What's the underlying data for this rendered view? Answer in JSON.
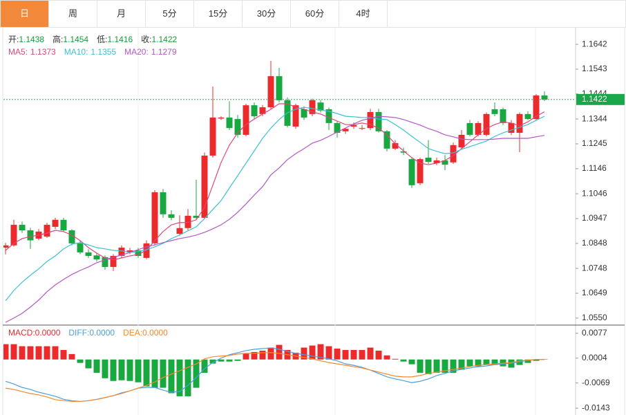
{
  "tabs": [
    "日",
    "周",
    "月",
    "5分",
    "15分",
    "30分",
    "60分",
    "4时"
  ],
  "active_tab": 0,
  "chart_data": [
    {
      "type": "candlestick",
      "info": [
        {
          "label": "开:",
          "value": "1.1438"
        },
        {
          "label": "高:",
          "value": "1.1454"
        },
        {
          "label": "低:",
          "value": "1.1416"
        },
        {
          "label": "收:",
          "value": "1.1422"
        }
      ],
      "up_color": "#eb2b2b",
      "down_color": "#18a83f",
      "open": [
        1.0831,
        1.084,
        1.0922,
        1.09,
        1.0867,
        1.0875,
        1.0914,
        1.0942,
        1.09,
        1.0848,
        1.0812,
        1.08,
        1.0793,
        1.0754,
        1.0798,
        1.0812,
        1.082,
        1.079,
        1.0848,
        1.1052,
        1.0964,
        1.0886,
        1.0909,
        1.0958,
        1.095,
        1.1198,
        1.1346,
        1.135,
        1.1344,
        1.1281,
        1.1399,
        1.1364,
        1.1391,
        1.1515,
        1.1419,
        1.1314,
        1.1383,
        1.1364,
        1.141,
        1.1383,
        1.1328,
        1.1295,
        1.1314,
        1.1305,
        1.1308,
        1.1372,
        1.1295,
        1.1226,
        1.1215,
        1.1184,
        1.1088,
        1.119,
        1.1168,
        1.1179,
        1.1171,
        1.1231,
        1.1328,
        1.1281,
        1.1281,
        1.1383,
        1.1383,
        1.1289,
        1.1289,
        1.1364,
        1.1344,
        1.1438
      ],
      "high": [
        1.085,
        1.0942,
        1.0935,
        1.091,
        1.0905,
        1.093,
        1.095,
        1.095,
        1.0905,
        1.086,
        1.0825,
        1.081,
        1.08,
        1.0805,
        1.084,
        1.083,
        1.083,
        1.086,
        1.106,
        1.1065,
        1.098,
        1.096,
        1.0985,
        1.1102,
        1.121,
        1.1474,
        1.1355,
        1.1415,
        1.136,
        1.1405,
        1.141,
        1.14,
        1.1576,
        1.1548,
        1.143,
        1.1405,
        1.1395,
        1.1425,
        1.142,
        1.139,
        1.1335,
        1.131,
        1.133,
        1.132,
        1.1385,
        1.1385,
        1.13,
        1.126,
        1.123,
        1.119,
        1.119,
        1.126,
        1.119,
        1.12,
        1.125,
        1.13,
        1.134,
        1.1335,
        1.137,
        1.141,
        1.139,
        1.134,
        1.137,
        1.1375,
        1.1444,
        1.1454
      ],
      "low": [
        1.0804,
        1.0835,
        1.089,
        1.0826,
        1.086,
        1.087,
        1.0905,
        1.0895,
        1.084,
        1.0805,
        1.079,
        1.0775,
        1.0743,
        1.0738,
        1.079,
        1.0805,
        1.079,
        1.0785,
        1.084,
        1.095,
        1.094,
        1.088,
        1.09,
        1.0945,
        1.0945,
        1.119,
        1.134,
        1.13,
        1.127,
        1.1275,
        1.1345,
        1.1355,
        1.1385,
        1.141,
        1.131,
        1.1305,
        1.134,
        1.1355,
        1.137,
        1.13,
        1.127,
        1.1285,
        1.1305,
        1.13,
        1.13,
        1.129,
        1.1215,
        1.122,
        1.12,
        1.1069,
        1.108,
        1.1165,
        1.116,
        1.114,
        1.1165,
        1.1225,
        1.1275,
        1.1275,
        1.1275,
        1.1355,
        1.132,
        1.128,
        1.1212,
        1.134,
        1.134,
        1.1416
      ],
      "close": [
        1.084,
        1.0922,
        1.09,
        1.086,
        1.0895,
        1.0922,
        1.0942,
        1.09,
        1.0848,
        1.0812,
        1.0798,
        1.0784,
        1.0754,
        1.0798,
        1.0831,
        1.082,
        1.0798,
        1.0848,
        1.1052,
        1.0964,
        1.095,
        1.0909,
        1.0958,
        1.095,
        1.1198,
        1.135,
        1.135,
        1.1308,
        1.1281,
        1.1399,
        1.1355,
        1.1391,
        1.1515,
        1.1419,
        1.1317,
        1.1399,
        1.135,
        1.1419,
        1.1377,
        1.1328,
        1.1289,
        1.1305,
        1.132,
        1.1308,
        1.1372,
        1.1295,
        1.1226,
        1.1248,
        1.121,
        1.108,
        1.1184,
        1.1173,
        1.1179,
        1.1162,
        1.124,
        1.1281,
        1.1281,
        1.1328,
        1.1364,
        1.1364,
        1.1328,
        1.1328,
        1.1364,
        1.1344,
        1.1438,
        1.1422
      ],
      "series": [
        {
          "label": "MA5:",
          "value_label": "1.1373",
          "color": "#e0457b",
          "values": [
            1.082,
            1.0848,
            1.0867,
            1.0875,
            1.0881,
            1.0889,
            1.09,
            1.0895,
            1.0881,
            1.0859,
            1.0831,
            1.0809,
            1.079,
            1.0782,
            1.079,
            1.0798,
            1.0804,
            1.082,
            1.0859,
            1.0895,
            1.0922,
            1.0931,
            1.0931,
            1.0942,
            1.0991,
            1.108,
            1.1171,
            1.124,
            1.1289,
            1.1322,
            1.1344,
            1.1364,
            1.1383,
            1.1405,
            1.1405,
            1.1391,
            1.1383,
            1.1372,
            1.1364,
            1.135,
            1.1336,
            1.1322,
            1.1322,
            1.1328,
            1.1322,
            1.1308,
            1.1281,
            1.1245,
            1.1217,
            1.119,
            1.1168,
            1.1162,
            1.1168,
            1.1179,
            1.1198,
            1.1226,
            1.1253,
            1.1281,
            1.1306,
            1.1322,
            1.1333,
            1.1328,
            1.1317,
            1.1333,
            1.1355,
            1.1373
          ]
        },
        {
          "label": "MA10:",
          "value_label": "1.1355",
          "color": "#3cc0d4",
          "values": [
            1.0619,
            1.066,
            1.0693,
            1.0721,
            1.0746,
            1.0776,
            1.0798,
            1.0826,
            1.0845,
            1.0851,
            1.0842,
            1.0831,
            1.0826,
            1.082,
            1.0818,
            1.0812,
            1.0815,
            1.0823,
            1.0834,
            1.0848,
            1.0867,
            1.0881,
            1.0898,
            1.0914,
            1.0947,
            1.0983,
            1.1019,
            1.1069,
            1.1118,
            1.1168,
            1.1217,
            1.1267,
            1.1308,
            1.1342,
            1.1369,
            1.1383,
            1.1391,
            1.1386,
            1.138,
            1.1375,
            1.1366,
            1.1355,
            1.1353,
            1.135,
            1.135,
            1.1344,
            1.1342,
            1.1322,
            1.13,
            1.1275,
            1.1251,
            1.1226,
            1.1215,
            1.1206,
            1.1209,
            1.1223,
            1.1234,
            1.1245,
            1.1256,
            1.1275,
            1.1289,
            1.13,
            1.1311,
            1.1322,
            1.1339,
            1.1355
          ]
        },
        {
          "label": "MA20:",
          "value_label": "1.1279",
          "color": "#b455c8",
          "values": [
            1.0533,
            1.055,
            1.0569,
            1.0594,
            1.0622,
            1.0655,
            1.0682,
            1.0704,
            1.0724,
            1.074,
            1.0754,
            1.0771,
            1.0782,
            1.0793,
            1.0801,
            1.0812,
            1.0823,
            1.0834,
            1.0842,
            1.0851,
            1.0859,
            1.0867,
            1.0873,
            1.0881,
            1.0892,
            1.0906,
            1.0922,
            1.0944,
            1.0972,
            1.1005,
            1.1041,
            1.1074,
            1.1121,
            1.1149,
            1.1182,
            1.1206,
            1.1226,
            1.1248,
            1.1259,
            1.1275,
            1.1292,
            1.1308,
            1.1325,
            1.1339,
            1.1347,
            1.1355,
            1.1353,
            1.135,
            1.1342,
            1.1331,
            1.132,
            1.1306,
            1.1295,
            1.1281,
            1.1273,
            1.1264,
            1.1262,
            1.1262,
            1.1262,
            1.1264,
            1.1267,
            1.1267,
            1.1267,
            1.1267,
            1.1273,
            1.1279
          ]
        }
      ],
      "last_price": 1.1422,
      "last_price_color": "#1aa64a",
      "ylim": [
        1.0522,
        1.1703
      ],
      "yticks": [
        1.1642,
        1.1543,
        1.1444,
        1.1344,
        1.1245,
        1.1146,
        1.1046,
        1.0947,
        1.0848,
        1.0748,
        1.0649,
        {
          "value": 1.055,
          "label": "1.0550"
        }
      ]
    },
    {
      "type": "macd",
      "histogram": {
        "label": "MACD:",
        "value_label": "0.0000",
        "up_color": "#eb2b2b",
        "down_color": "#18a83f",
        "values": [
          0.0045,
          0.0045,
          0.0039,
          0.0039,
          0.0039,
          0.0039,
          0.0039,
          0.0028,
          0.0016,
          -0.001,
          -0.0026,
          -0.0039,
          -0.0055,
          -0.0063,
          -0.0061,
          -0.0063,
          -0.0067,
          -0.0079,
          -0.0083,
          -0.0083,
          -0.0099,
          -0.0108,
          -0.0108,
          -0.0083,
          -0.0039,
          -0.0012,
          -0.0006,
          -0.0006,
          -0.0004,
          0.0018,
          0.0022,
          0.0026,
          0.0035,
          0.0043,
          0.0028,
          0.002,
          0.0035,
          0.0041,
          0.0045,
          0.0039,
          0.0032,
          0.0028,
          0.0028,
          0.0028,
          0.0035,
          0.0026,
          0.0012,
          0.0002,
          -0.0006,
          -0.0014,
          -0.0039,
          -0.0043,
          -0.0039,
          -0.0039,
          -0.0039,
          -0.003,
          -0.002,
          -0.002,
          -0.0016,
          -0.0016,
          -0.002,
          -0.0024,
          -0.0016,
          -0.001,
          -0.0004,
          0.0001
        ]
      },
      "series": [
        {
          "label": "DIFF:",
          "value_label": "0.0000",
          "color": "#4a9fe0",
          "values": [
            -0.0064,
            -0.0072,
            -0.0082,
            -0.0088,
            -0.0096,
            -0.0102,
            -0.0108,
            -0.0117,
            -0.0121,
            -0.0123,
            -0.0121,
            -0.0117,
            -0.0112,
            -0.0106,
            -0.0098,
            -0.0092,
            -0.0084,
            -0.0082,
            -0.0082,
            -0.009,
            -0.0096,
            -0.0094,
            -0.0076,
            -0.0053,
            -0.0027,
            -0.0009,
            0.0004,
            0.0014,
            0.002,
            0.0026,
            0.003,
            0.0032,
            0.0034,
            0.003,
            0.0024,
            0.0018,
            0.0014,
            0.001,
            0.0006,
            0.0002,
            -0.0004,
            -0.0013,
            -0.0017,
            -0.0023,
            -0.0031,
            -0.0041,
            -0.0051,
            -0.0057,
            -0.0062,
            -0.0068,
            -0.0064,
            -0.0057,
            -0.0047,
            -0.0041,
            -0.0033,
            -0.0029,
            -0.0025,
            -0.0021,
            -0.0019,
            -0.0015,
            -0.0013,
            -0.0011,
            -0.0007,
            -0.0002,
            0,
            0
          ]
        },
        {
          "label": "DEA:",
          "value_label": "0.0000",
          "color": "#f5882d",
          "values": [
            -0.0084,
            -0.0088,
            -0.0094,
            -0.01,
            -0.0104,
            -0.011,
            -0.0118,
            -0.0121,
            -0.0123,
            -0.0123,
            -0.0121,
            -0.0117,
            -0.0112,
            -0.0106,
            -0.01,
            -0.0092,
            -0.0084,
            -0.0076,
            -0.0066,
            -0.0053,
            -0.0043,
            -0.0033,
            -0.0023,
            -0.0013,
            0.0002,
            0.0008,
            0.001,
            0.0012,
            0.0016,
            0.0018,
            0.0018,
            0.002,
            0.002,
            0.0018,
            0.0014,
            0.001,
            0.0006,
            0.0002,
            -0.0004,
            -0.0009,
            -0.0013,
            -0.0017,
            -0.0021,
            -0.0025,
            -0.0031,
            -0.0037,
            -0.0043,
            -0.0049,
            -0.0051,
            -0.0051,
            -0.0047,
            -0.0041,
            -0.0037,
            -0.0033,
            -0.0029,
            -0.0025,
            -0.0021,
            -0.0017,
            -0.0015,
            -0.0013,
            -0.0011,
            -0.0009,
            -0.0004,
            -0.0002,
            0,
            0
          ]
        }
      ],
      "ylim": [
        -0.0163,
        0.0097
      ],
      "yticks": [
        0.0077,
        0.0004,
        -0.0069,
        -0.0143
      ]
    }
  ]
}
